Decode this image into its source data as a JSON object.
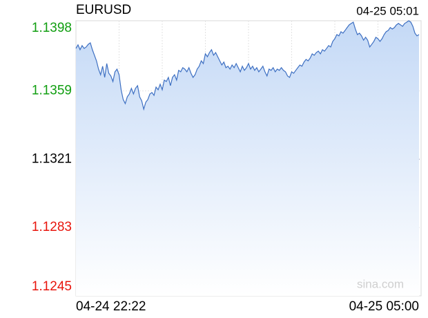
{
  "chart_data": {
    "type": "area",
    "title": "EURUSD",
    "timestamp": "04-25 05:01",
    "watermark": "sina.com",
    "color": "#3d6fc2",
    "fill_top": "#c4d9f6",
    "fill_bottom": "#ffffff",
    "ylim": [
      1.1245,
      1.1398
    ],
    "yticks": [
      1.1245,
      1.1283,
      1.1321,
      1.1359,
      1.1398
    ],
    "ytick_colors": [
      "#e8140c",
      "#e8140c",
      "#000000",
      "#109e10",
      "#109e10"
    ],
    "reference": 1.1321,
    "categories": [
      "04-24 22:22",
      null,
      null,
      null,
      null,
      null,
      null,
      null,
      null,
      null,
      null,
      null,
      null,
      null,
      null,
      null,
      null,
      null,
      null,
      null,
      null,
      null,
      null,
      null,
      null,
      null,
      null,
      null,
      null,
      null,
      null,
      null,
      null,
      null,
      null,
      null,
      null,
      null,
      null,
      null,
      null,
      null,
      null,
      null,
      null,
      null,
      null,
      null,
      null,
      null,
      null,
      null,
      null,
      null,
      null,
      null,
      null,
      null,
      null,
      null,
      null,
      null,
      null,
      null,
      null,
      null,
      null,
      null,
      null,
      null,
      null,
      null,
      null,
      null,
      null,
      null,
      null,
      null,
      null,
      null,
      null,
      null,
      null,
      null,
      null,
      null,
      null,
      null,
      null,
      null,
      null,
      null,
      null,
      null,
      null,
      null,
      null,
      null,
      null,
      null,
      null,
      null,
      null,
      null,
      null,
      null,
      null,
      null,
      null,
      null,
      null,
      null,
      null,
      null,
      null,
      null,
      null,
      null,
      null,
      null,
      null,
      null,
      null,
      null,
      null,
      null,
      null,
      null,
      null,
      null,
      null,
      null,
      null,
      null,
      null,
      null,
      null,
      null,
      null,
      null,
      null,
      null,
      null,
      null,
      null,
      null,
      null,
      null,
      null,
      null,
      null,
      null,
      null,
      null,
      null,
      null,
      null,
      null,
      null,
      null,
      null,
      null,
      null,
      null,
      null,
      null,
      null,
      "04-25 05:00"
    ],
    "values": [
      1.13826,
      1.13846,
      1.13819,
      1.13842,
      1.13826,
      1.13834,
      1.13849,
      1.13857,
      1.13819,
      1.13788,
      1.13757,
      1.13711,
      1.1368,
      1.13727,
      1.13665,
      1.13742,
      1.13688,
      1.13673,
      1.13642,
      1.13696,
      1.13711,
      1.1368,
      1.13596,
      1.13542,
      1.13519,
      1.13557,
      1.13573,
      1.13604,
      1.13573,
      1.13604,
      1.13619,
      1.13557,
      1.13535,
      1.13488,
      1.13527,
      1.13542,
      1.13573,
      1.13581,
      1.13565,
      1.13611,
      1.13596,
      1.13627,
      1.13596,
      1.1365,
      1.13642,
      1.13665,
      1.13619,
      1.13665,
      1.1368,
      1.1365,
      1.13704,
      1.13696,
      1.13719,
      1.13711,
      1.13696,
      1.13719,
      1.13688,
      1.13665,
      1.1368,
      1.13711,
      1.13727,
      1.13757,
      1.13742,
      1.13796,
      1.1378,
      1.13803,
      1.13819,
      1.13788,
      1.13803,
      1.1378,
      1.13757,
      1.13734,
      1.1375,
      1.13719,
      1.13727,
      1.13711,
      1.13734,
      1.13719,
      1.13742,
      1.13719,
      1.13696,
      1.13727,
      1.13704,
      1.13719,
      1.13742,
      1.13711,
      1.13727,
      1.13704,
      1.13719,
      1.13696,
      1.13711,
      1.13727,
      1.13696,
      1.13673,
      1.13711,
      1.13704,
      1.13719,
      1.13696,
      1.13711,
      1.13704,
      1.13719,
      1.13704,
      1.13696,
      1.13673,
      1.13665,
      1.13696,
      1.13688,
      1.13704,
      1.13719,
      1.13734,
      1.13727,
      1.1375,
      1.13765,
      1.13757,
      1.13772,
      1.13796,
      1.13788,
      1.13803,
      1.13811,
      1.13796,
      1.13819,
      1.13811,
      1.13826,
      1.13842,
      1.13834,
      1.13865,
      1.1388,
      1.13903,
      1.13896,
      1.13919,
      1.13911,
      1.13926,
      1.13942,
      1.13957,
      1.13965,
      1.13972,
      1.13934,
      1.13903,
      1.13911,
      1.13896,
      1.13872,
      1.13888,
      1.13872,
      1.13834,
      1.13849,
      1.13865,
      1.13888,
      1.1388,
      1.13865,
      1.1388,
      1.13903,
      1.13919,
      1.13926,
      1.13942,
      1.13934,
      1.13942,
      1.13957,
      1.13965,
      1.13957,
      1.13949,
      1.13965,
      1.13972,
      1.1398,
      1.13972,
      1.13949,
      1.13911,
      1.13896,
      1.13903
    ]
  }
}
